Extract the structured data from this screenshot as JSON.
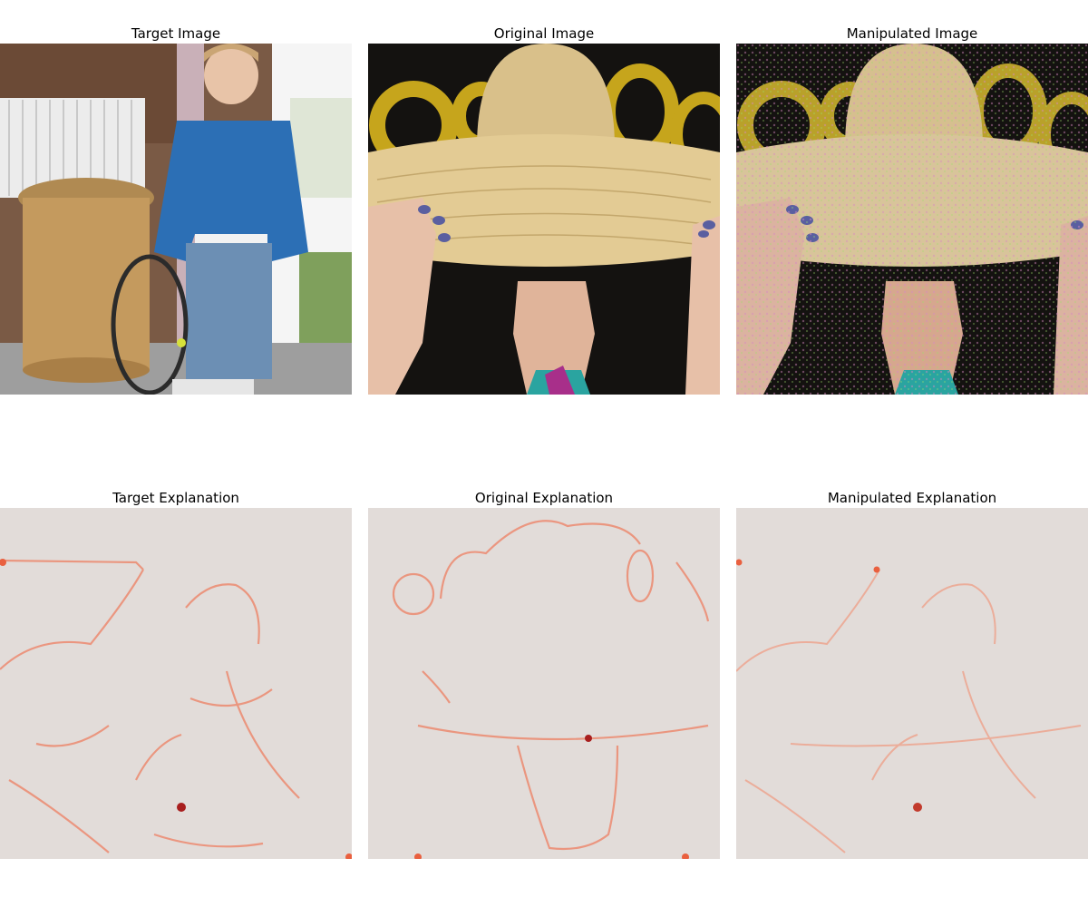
{
  "figure": {
    "panels": [
      {
        "id": "target-image",
        "title": "Target Image",
        "row": 0,
        "col": 0
      },
      {
        "id": "original-image",
        "title": "Original Image",
        "row": 0,
        "col": 1
      },
      {
        "id": "manipulated-image",
        "title": "Manipulated Image",
        "row": 0,
        "col": 2
      },
      {
        "id": "target-explanation",
        "title": "Target Explanation",
        "row": 1,
        "col": 0
      },
      {
        "id": "original-explanation",
        "title": "Original Explanation",
        "row": 1,
        "col": 1
      },
      {
        "id": "manipulated-explanation",
        "title": "Manipulated Explanation",
        "row": 1,
        "col": 2
      }
    ],
    "colors": {
      "heatmap_background": "#e2dcd9",
      "heatmap_edge": "#e9603f",
      "heatmap_hot": "#a81e1e"
    }
  }
}
